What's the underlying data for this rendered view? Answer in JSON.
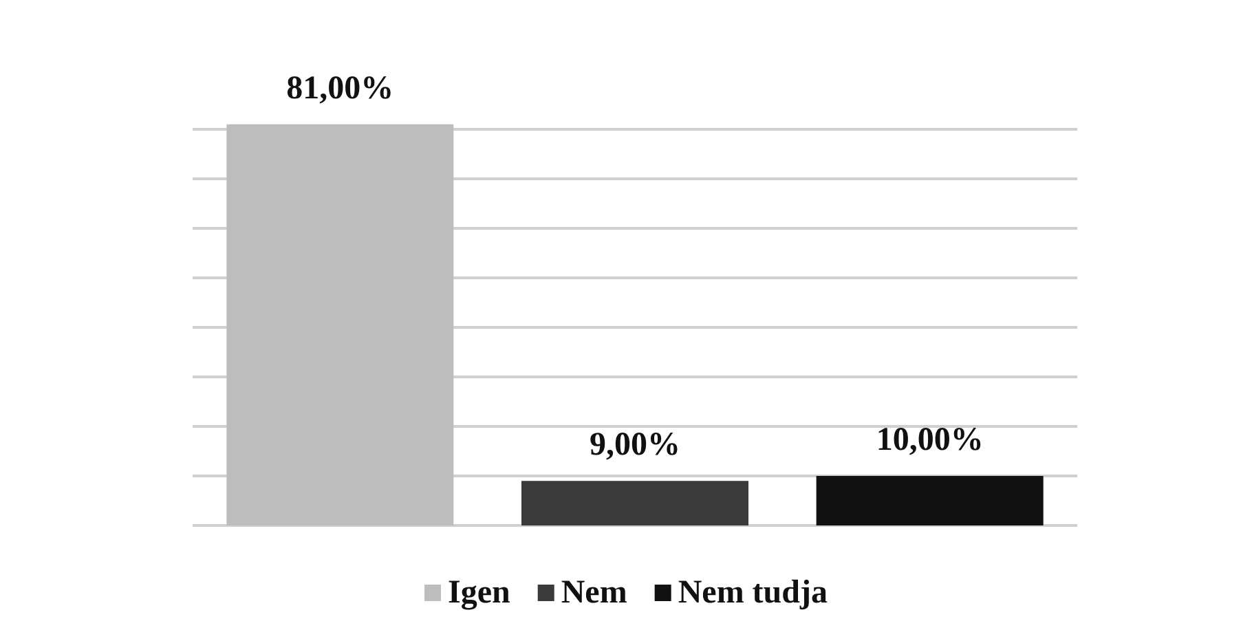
{
  "chart_data": {
    "type": "bar",
    "categories": [
      null,
      null,
      null
    ],
    "stacked": true,
    "series": [
      {
        "name": "Igen",
        "color": "#bdbdbd",
        "values": [
          81,
          null,
          null
        ],
        "value_labels": [
          "81,00%",
          null,
          null
        ]
      },
      {
        "name": "Nem",
        "color": "#3a3a3a",
        "values": [
          null,
          9,
          null
        ],
        "value_labels": [
          null,
          "9,00%",
          null
        ]
      },
      {
        "name": "Nem tudja",
        "color": "#111111",
        "values": [
          null,
          null,
          10
        ],
        "value_labels": [
          null,
          null,
          "10,00%"
        ]
      }
    ],
    "yticks": [
      {
        "value": 0,
        "label": null
      },
      {
        "value": 10,
        "label": null
      },
      {
        "value": 20,
        "label": null
      },
      {
        "value": 30,
        "label": null
      },
      {
        "value": 40,
        "label": null
      },
      {
        "value": 50,
        "label": null
      },
      {
        "value": 60,
        "label": null
      },
      {
        "value": 70,
        "label": null
      },
      {
        "value": 80,
        "label": null
      }
    ],
    "grid": "y",
    "legend": "bottom"
  }
}
